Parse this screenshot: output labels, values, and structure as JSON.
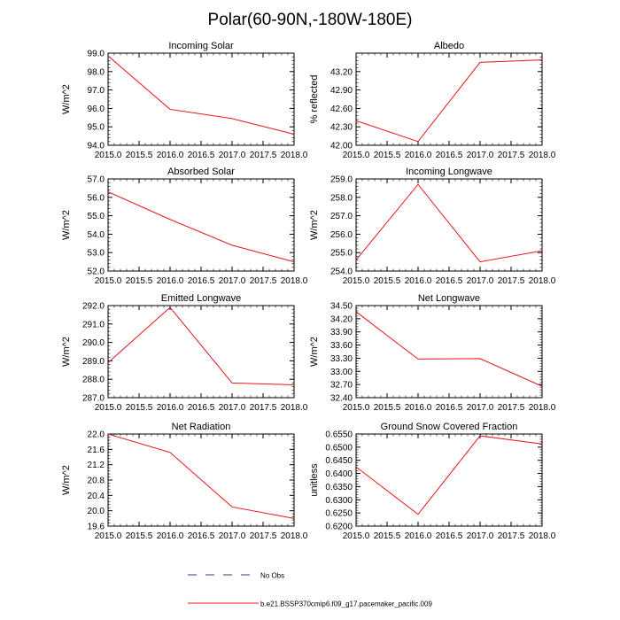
{
  "figure": {
    "title": "Polar(60-90N,-180W-180E)"
  },
  "chart_data": [
    {
      "type": "line",
      "title": "Incoming Solar",
      "ylabel": "W/m^2",
      "x": [
        2015,
        2016,
        2017,
        2018
      ],
      "values": [
        98.85,
        95.95,
        95.45,
        94.6
      ],
      "xlim": [
        2015.0,
        2018.0
      ],
      "ylim": [
        94.0,
        99.0
      ],
      "xticks": [
        "2015.0",
        "2015.5",
        "2016.0",
        "2016.5",
        "2017.0",
        "2017.5",
        "2018.0"
      ],
      "yticks": [
        "94.0",
        "95.0",
        "96.0",
        "97.0",
        "98.0",
        "99.0"
      ]
    },
    {
      "type": "line",
      "title": "Albedo",
      "ylabel": "% reflected",
      "x": [
        2015,
        2016,
        2017,
        2018
      ],
      "values": [
        42.4,
        42.06,
        43.35,
        43.39
      ],
      "xlim": [
        2015.0,
        2018.0
      ],
      "ylim": [
        42.0,
        43.5
      ],
      "xticks": [
        "2015.0",
        "2015.5",
        "2016.0",
        "2016.5",
        "2017.0",
        "2017.5",
        "2018.0"
      ],
      "yticks": [
        "42.00",
        "42.30",
        "42.60",
        "42.90",
        "43.20"
      ]
    },
    {
      "type": "line",
      "title": "Absorbed Solar",
      "ylabel": "W/m^2",
      "x": [
        2015,
        2016,
        2017,
        2018
      ],
      "values": [
        56.3,
        54.8,
        53.4,
        52.5
      ],
      "xlim": [
        2015.0,
        2018.0
      ],
      "ylim": [
        52.0,
        57.0
      ],
      "xticks": [
        "2015.0",
        "2015.5",
        "2016.0",
        "2016.5",
        "2017.0",
        "2017.5",
        "2018.0"
      ],
      "yticks": [
        "52.0",
        "53.0",
        "54.0",
        "55.0",
        "56.0",
        "57.0"
      ]
    },
    {
      "type": "line",
      "title": "Incoming Longwave",
      "ylabel": "W/m^2",
      "x": [
        2015,
        2016,
        2017,
        2018
      ],
      "values": [
        254.6,
        258.7,
        254.5,
        255.1
      ],
      "xlim": [
        2015.0,
        2018.0
      ],
      "ylim": [
        254.0,
        259.0
      ],
      "xticks": [
        "2015.0",
        "2015.5",
        "2016.0",
        "2016.5",
        "2017.0",
        "2017.5",
        "2018.0"
      ],
      "yticks": [
        "254.0",
        "255.0",
        "256.0",
        "257.0",
        "258.0",
        "259.0"
      ]
    },
    {
      "type": "line",
      "title": "Emitted Longwave",
      "ylabel": "W/m^2",
      "x": [
        2015,
        2016,
        2017,
        2018
      ],
      "values": [
        288.9,
        291.9,
        287.8,
        287.7
      ],
      "xlim": [
        2015.0,
        2018.0
      ],
      "ylim": [
        287.0,
        292.0
      ],
      "xticks": [
        "2015.0",
        "2015.5",
        "2016.0",
        "2016.5",
        "2017.0",
        "2017.5",
        "2018.0"
      ],
      "yticks": [
        "287.0",
        "288.0",
        "289.0",
        "290.0",
        "291.0",
        "292.0"
      ]
    },
    {
      "type": "line",
      "title": "Net Longwave",
      "ylabel": "W/m^2",
      "x": [
        2015,
        2016,
        2017,
        2018
      ],
      "values": [
        34.36,
        33.28,
        33.29,
        32.66
      ],
      "xlim": [
        2015.0,
        2018.0
      ],
      "ylim": [
        32.4,
        34.5
      ],
      "xticks": [
        "2015.0",
        "2015.5",
        "2016.0",
        "2016.5",
        "2017.0",
        "2017.5",
        "2018.0"
      ],
      "yticks": [
        "32.40",
        "32.70",
        "33.00",
        "33.30",
        "33.60",
        "33.90",
        "34.20",
        "34.50"
      ]
    },
    {
      "type": "line",
      "title": "Net Radiation",
      "ylabel": "W/m^2",
      "x": [
        2015,
        2016,
        2017,
        2018
      ],
      "values": [
        22.0,
        21.52,
        20.1,
        19.8
      ],
      "xlim": [
        2015.0,
        2018.0
      ],
      "ylim": [
        19.6,
        22.0
      ],
      "xticks": [
        "2015.0",
        "2015.5",
        "2016.0",
        "2016.5",
        "2017.0",
        "2017.5",
        "2018.0"
      ],
      "yticks": [
        "19.6",
        "20.0",
        "20.4",
        "20.8",
        "21.2",
        "21.6",
        "22.0"
      ]
    },
    {
      "type": "line",
      "title": "Ground Snow Covered Fraction",
      "ylabel": "unitless",
      "x": [
        2015,
        2016,
        2017,
        2018
      ],
      "values": [
        0.6425,
        0.6245,
        0.6543,
        0.6512
      ],
      "xlim": [
        2015.0,
        2018.0
      ],
      "ylim": [
        0.62,
        0.655
      ],
      "xticks": [
        "2015.0",
        "2015.5",
        "2016.0",
        "2016.5",
        "2017.0",
        "2017.5",
        "2018.0"
      ],
      "yticks": [
        "0.6200",
        "0.6250",
        "0.6300",
        "0.6350",
        "0.6400",
        "0.6450",
        "0.6500",
        "0.6550"
      ]
    }
  ],
  "legend": [
    {
      "label": "No Obs",
      "color": "#3a3a8c",
      "dash": true
    },
    {
      "label": "b.e21.BSSP370cmip6.f09_g17.pacemaker_pacific.009",
      "color": "#e8141b",
      "dash": false
    }
  ],
  "colors": {
    "series": "#e8141b",
    "axis": "#000000"
  }
}
